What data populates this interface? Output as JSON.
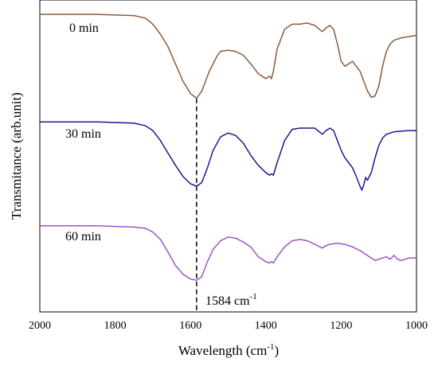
{
  "chart_data": {
    "type": "line",
    "xlabel": "Wavelength (cm",
    "xlabel_sup": "-1",
    "xlabel_close": ")",
    "ylabel": "Transmitance (arb.unit)",
    "xlim": [
      2000,
      1000
    ],
    "x_reversed": true,
    "xticks": [
      2000,
      1800,
      1600,
      1400,
      1200,
      1000
    ],
    "grid": false,
    "y_ticks_shown": false,
    "annotation": {
      "x": 1584,
      "text": "1584 cm",
      "sup": "-1",
      "style": "dashed-vertical"
    },
    "series": [
      {
        "name": "0 min",
        "color": "#8b5a3c",
        "x": [
          2000,
          1850,
          1750,
          1720,
          1700,
          1680,
          1660,
          1640,
          1620,
          1600,
          1584,
          1570,
          1550,
          1530,
          1520,
          1500,
          1480,
          1460,
          1440,
          1420,
          1400,
          1390,
          1385,
          1380,
          1370,
          1350,
          1330,
          1310,
          1290,
          1270,
          1250,
          1240,
          1230,
          1220,
          1210,
          1200,
          1190,
          1180,
          1170,
          1160,
          1150,
          1140,
          1130,
          1120,
          1110,
          1100,
          1090,
          1080,
          1070,
          1060,
          1040,
          1020,
          1000
        ],
        "y": [
          100,
          100,
          99.5,
          98.5,
          96,
          92,
          87,
          80,
          73,
          68,
          66,
          69,
          77,
          83,
          85,
          85.5,
          85,
          83.5,
          80,
          76,
          74,
          75,
          74,
          77,
          86,
          94,
          96,
          96,
          96.5,
          95.5,
          93,
          94.5,
          95.5,
          94,
          88,
          81,
          79,
          80,
          81,
          79,
          77,
          73,
          69,
          66.5,
          67,
          71,
          79,
          85,
          88,
          89.5,
          90.5,
          91,
          91.5
        ]
      },
      {
        "name": "30 min",
        "color": "#1a1a8c",
        "x": [
          2000,
          1850,
          1750,
          1720,
          1700,
          1680,
          1660,
          1640,
          1620,
          1600,
          1584,
          1570,
          1555,
          1540,
          1520,
          1500,
          1480,
          1460,
          1440,
          1420,
          1400,
          1390,
          1385,
          1380,
          1370,
          1350,
          1330,
          1310,
          1290,
          1270,
          1250,
          1240,
          1230,
          1220,
          1210,
          1200,
          1190,
          1180,
          1170,
          1160,
          1150,
          1145,
          1140,
          1135,
          1130,
          1120,
          1110,
          1100,
          1090,
          1080,
          1060,
          1040,
          1020,
          1000
        ],
        "y": [
          56.5,
          56.5,
          56,
          55,
          53,
          49,
          44,
          39,
          34.5,
          31.5,
          30.5,
          32,
          38,
          45,
          50.5,
          52,
          51,
          48,
          43,
          39,
          36,
          35,
          35.5,
          35,
          40,
          49,
          53.5,
          54,
          54,
          54,
          51.5,
          53,
          54,
          53,
          49,
          45,
          42,
          40,
          38,
          34.5,
          30.5,
          29,
          31,
          34,
          33,
          36,
          42,
          47,
          50,
          51.5,
          52.5,
          52.8,
          53,
          53
        ]
      },
      {
        "name": "60 min",
        "color": "#9b55c8",
        "x": [
          2000,
          1850,
          1750,
          1720,
          1700,
          1680,
          1660,
          1640,
          1620,
          1600,
          1584,
          1570,
          1555,
          1540,
          1520,
          1500,
          1480,
          1460,
          1440,
          1420,
          1400,
          1390,
          1385,
          1380,
          1370,
          1350,
          1330,
          1310,
          1290,
          1270,
          1250,
          1240,
          1230,
          1210,
          1190,
          1170,
          1150,
          1130,
          1110,
          1090,
          1080,
          1070,
          1060,
          1050,
          1040,
          1020,
          1000
        ],
        "y": [
          14.5,
          14.5,
          14,
          13.5,
          12,
          9,
          4,
          -1.5,
          -5,
          -7,
          -7.5,
          -6,
          0,
          5,
          8.5,
          10,
          9.5,
          8,
          6,
          2,
          0,
          -0.5,
          0,
          -0.5,
          2,
          6,
          8.5,
          9,
          8.5,
          7,
          5.5,
          6.5,
          7,
          7.5,
          7,
          6,
          4.5,
          2.5,
          0.5,
          1.5,
          2,
          1,
          2.5,
          1,
          0.5,
          1.5,
          1.5
        ]
      }
    ]
  }
}
